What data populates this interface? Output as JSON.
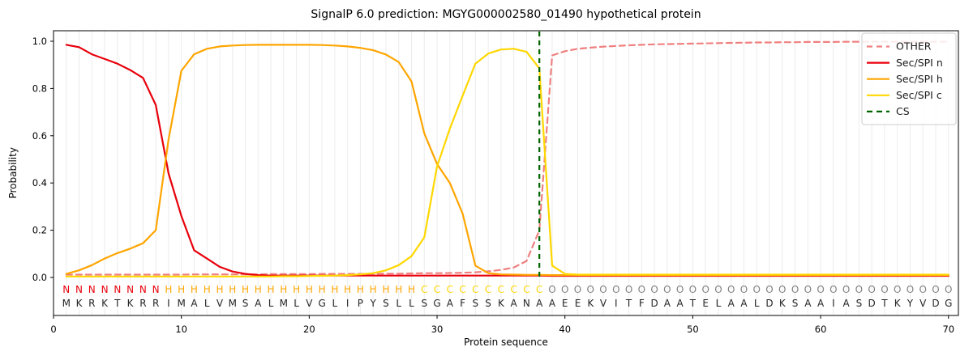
{
  "chart_data": {
    "type": "line",
    "title": "SignalP 6.0 prediction: MGYG000002580_01490 hypothetical protein",
    "xlabel": "Protein sequence",
    "ylabel": "Probability",
    "xlim": [
      0,
      70.8
    ],
    "ylim": [
      -0.16,
      1.045
    ],
    "xticks": [
      0,
      10,
      20,
      30,
      40,
      50,
      60,
      70
    ],
    "yticks": [
      "0.0",
      "0.2",
      "0.4",
      "0.6",
      "0.8",
      "1.0"
    ],
    "grid": "vertical gridlines at every residue position 0-70, light gray",
    "legend_position": "upper right",
    "x": [
      1,
      2,
      3,
      4,
      5,
      6,
      7,
      8,
      9,
      10,
      11,
      12,
      13,
      14,
      15,
      16,
      17,
      18,
      19,
      20,
      21,
      22,
      23,
      24,
      25,
      26,
      27,
      28,
      29,
      30,
      31,
      32,
      33,
      34,
      35,
      36,
      37,
      38,
      39,
      40,
      41,
      42,
      43,
      44,
      45,
      46,
      47,
      48,
      49,
      50,
      51,
      52,
      53,
      54,
      55,
      56,
      57,
      58,
      59,
      60,
      61,
      62,
      63,
      64,
      65,
      66,
      67,
      68,
      69,
      70
    ],
    "series": [
      {
        "name": "OTHER",
        "color": "#f08080",
        "style": "dashed",
        "values": [
          0.012,
          0.012,
          0.012,
          0.012,
          0.012,
          0.012,
          0.012,
          0.012,
          0.012,
          0.012,
          0.013,
          0.013,
          0.013,
          0.013,
          0.013,
          0.013,
          0.014,
          0.014,
          0.014,
          0.014,
          0.015,
          0.015,
          0.015,
          0.015,
          0.015,
          0.016,
          0.016,
          0.017,
          0.018,
          0.018,
          0.019,
          0.02,
          0.022,
          0.026,
          0.032,
          0.042,
          0.07,
          0.2,
          0.94,
          0.958,
          0.968,
          0.973,
          0.977,
          0.98,
          0.983,
          0.985,
          0.987,
          0.988,
          0.989,
          0.99,
          0.991,
          0.992,
          0.993,
          0.994,
          0.995,
          0.995,
          0.996,
          0.996,
          0.997,
          0.997,
          0.997,
          0.998,
          0.998,
          0.998,
          0.998,
          0.998,
          0.998,
          0.998,
          0.998,
          0.998
        ]
      },
      {
        "name": "Sec/SPI n",
        "color": "#e8000b",
        "style": "solid",
        "values": [
          0.985,
          0.975,
          0.945,
          0.925,
          0.905,
          0.878,
          0.845,
          0.73,
          0.44,
          0.26,
          0.115,
          0.08,
          0.045,
          0.025,
          0.015,
          0.01,
          0.008,
          0.008,
          0.008,
          0.008,
          0.008,
          0.008,
          0.008,
          0.008,
          0.008,
          0.008,
          0.008,
          0.008,
          0.008,
          0.008,
          0.008,
          0.008,
          0.008,
          0.008,
          0.008,
          0.008,
          0.008,
          0.008,
          0.007,
          0.007,
          0.007,
          0.007,
          0.007,
          0.007,
          0.007,
          0.007,
          0.007,
          0.007,
          0.007,
          0.007,
          0.007,
          0.007,
          0.007,
          0.007,
          0.007,
          0.007,
          0.007,
          0.007,
          0.007,
          0.007,
          0.007,
          0.007,
          0.007,
          0.007,
          0.007,
          0.007,
          0.007,
          0.007,
          0.007,
          0.007
        ]
      },
      {
        "name": "Sec/SPI h",
        "color": "#ffa500",
        "style": "solid",
        "values": [
          0.015,
          0.03,
          0.052,
          0.08,
          0.103,
          0.122,
          0.145,
          0.2,
          0.585,
          0.875,
          0.945,
          0.968,
          0.978,
          0.982,
          0.984,
          0.985,
          0.985,
          0.985,
          0.985,
          0.985,
          0.984,
          0.982,
          0.978,
          0.972,
          0.962,
          0.944,
          0.912,
          0.83,
          0.61,
          0.48,
          0.4,
          0.27,
          0.05,
          0.018,
          0.013,
          0.012,
          0.011,
          0.011,
          0.01,
          0.01,
          0.01,
          0.01,
          0.01,
          0.01,
          0.01,
          0.01,
          0.01,
          0.01,
          0.01,
          0.01,
          0.01,
          0.01,
          0.01,
          0.01,
          0.01,
          0.01,
          0.01,
          0.01,
          0.01,
          0.01,
          0.01,
          0.01,
          0.01,
          0.01,
          0.01,
          0.01,
          0.01,
          0.01,
          0.01,
          0.01
        ]
      },
      {
        "name": "Sec/SPI c",
        "color": "#ffd700",
        "style": "solid",
        "values": [
          0.004,
          0.004,
          0.004,
          0.004,
          0.004,
          0.004,
          0.004,
          0.004,
          0.004,
          0.004,
          0.004,
          0.004,
          0.004,
          0.004,
          0.004,
          0.004,
          0.004,
          0.005,
          0.005,
          0.006,
          0.007,
          0.008,
          0.01,
          0.013,
          0.018,
          0.03,
          0.052,
          0.09,
          0.17,
          0.47,
          0.63,
          0.77,
          0.905,
          0.948,
          0.965,
          0.968,
          0.955,
          0.885,
          0.05,
          0.015,
          0.012,
          0.012,
          0.012,
          0.012,
          0.012,
          0.012,
          0.012,
          0.012,
          0.012,
          0.012,
          0.012,
          0.012,
          0.012,
          0.012,
          0.012,
          0.012,
          0.012,
          0.012,
          0.012,
          0.012,
          0.012,
          0.012,
          0.012,
          0.012,
          0.012,
          0.012,
          0.012,
          0.012,
          0.012,
          0.012
        ]
      }
    ],
    "cs_line": {
      "name": "CS",
      "x": 38,
      "color": "#006400",
      "style": "dashed"
    },
    "legend": [
      "OTHER",
      "Sec/SPI n",
      "Sec/SPI h",
      "Sec/SPI c",
      "CS"
    ],
    "sequence": "MKRKTKRRIMALVMSALMLVGLIPYSLLSGAFSSKANAAEEKVITFDAATELAALDKSAAIASDTKYVDG",
    "regions": "NNNNNNNNHHHHHHHHHHHHHHHHHHHHCCCCCCCCCCOOOOOOOOOOOOOOOOOOOOOOOOOOOOOOOO",
    "region_colors": {
      "N": "#e8000b",
      "H": "#ffa500",
      "C": "#ffd700",
      "O": "#808080"
    },
    "sequence_color": "#262626",
    "colors": {
      "grid": "#ececec",
      "spine": "#000000",
      "legend_border": "#cccccc",
      "tick_label": "#000000"
    }
  }
}
